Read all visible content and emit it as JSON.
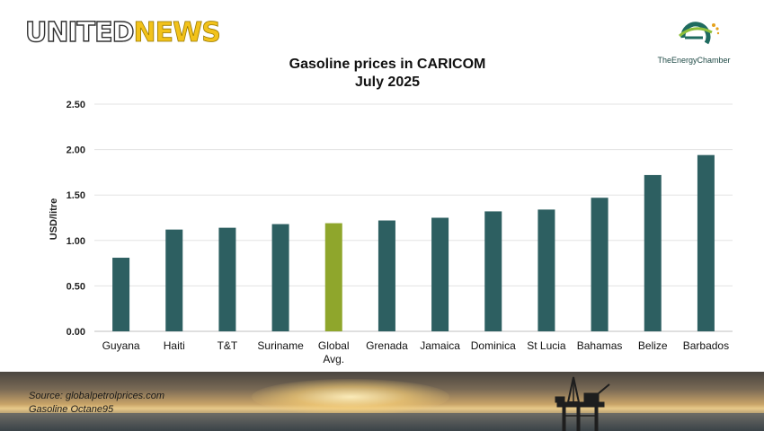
{
  "header": {
    "logo_left": {
      "part1": "UNITED",
      "part2": "NEWS"
    },
    "logo_right": {
      "text": "TheEnergyChamber"
    }
  },
  "chart_data": {
    "type": "bar",
    "title": "Gasoline prices in CARICOM",
    "subtitle": "July 2025",
    "xlabel": "",
    "ylabel": "USD/litre",
    "ylim": [
      0,
      2.5
    ],
    "yticks": [
      "0.00",
      "0.50",
      "1.00",
      "1.50",
      "2.00",
      "2.50"
    ],
    "grid": true,
    "categories": [
      [
        "Guyana"
      ],
      [
        "Haiti"
      ],
      [
        "T&T"
      ],
      [
        "Suriname"
      ],
      [
        "Global",
        "Avg."
      ],
      [
        "Grenada"
      ],
      [
        "Jamaica"
      ],
      [
        "Dominica"
      ],
      [
        "St Lucia"
      ],
      [
        "Bahamas"
      ],
      [
        "Belize"
      ],
      [
        "Barbados"
      ]
    ],
    "values": [
      0.81,
      1.12,
      1.14,
      1.18,
      1.19,
      1.22,
      1.25,
      1.32,
      1.34,
      1.47,
      1.72,
      1.94
    ],
    "colors": {
      "default": "#2d5f61",
      "highlight": "#8fa62c",
      "highlight_index": 4,
      "grid": "#e3e3e3",
      "axis": "#bfbfbf"
    }
  },
  "footer": {
    "source_line1": "Source: globalpetrolprices.com",
    "source_line2": "Gasoline Octane95"
  }
}
